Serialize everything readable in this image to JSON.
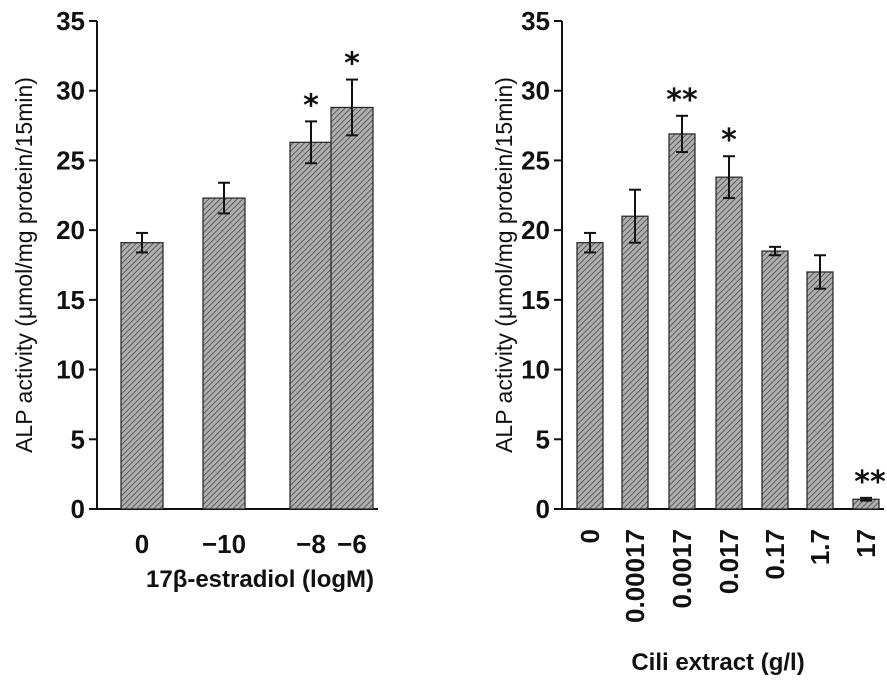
{
  "chart_data": [
    {
      "type": "bar",
      "ylabel": "ALP activity (μmol/mg protein/15min)",
      "xlabel": "17β-estradiol (logM)",
      "categories": [
        "0",
        "−10",
        "−8",
        "−6"
      ],
      "values": [
        19.1,
        22.3,
        26.3,
        28.8
      ],
      "errors": [
        0.7,
        1.1,
        1.5,
        2.0
      ],
      "significance": [
        "",
        "",
        "*",
        "*"
      ],
      "ylim": [
        0,
        35
      ],
      "yticks": [
        "0",
        "5",
        "10",
        "15",
        "20",
        "25",
        "30",
        "35"
      ],
      "bar_color": "#8a8a8a"
    },
    {
      "type": "bar",
      "ylabel": "ALP activity (μmol/mg protein/15min)",
      "xlabel": "Cili extract (g/l)",
      "categories": [
        "0",
        "0.00017",
        "0.0017",
        "0.017",
        "0.17",
        "1.7",
        "17"
      ],
      "values": [
        19.1,
        21.0,
        26.9,
        23.8,
        18.5,
        17.0,
        0.7
      ],
      "errors": [
        0.7,
        1.9,
        1.3,
        1.5,
        0.3,
        1.2,
        0.1
      ],
      "significance": [
        "",
        "",
        "**",
        "*",
        "",
        "",
        "**"
      ],
      "ylim": [
        0,
        35
      ],
      "yticks": [
        "0",
        "5",
        "10",
        "15",
        "20",
        "25",
        "30",
        "35"
      ],
      "bar_color": "#8a8a8a"
    }
  ]
}
